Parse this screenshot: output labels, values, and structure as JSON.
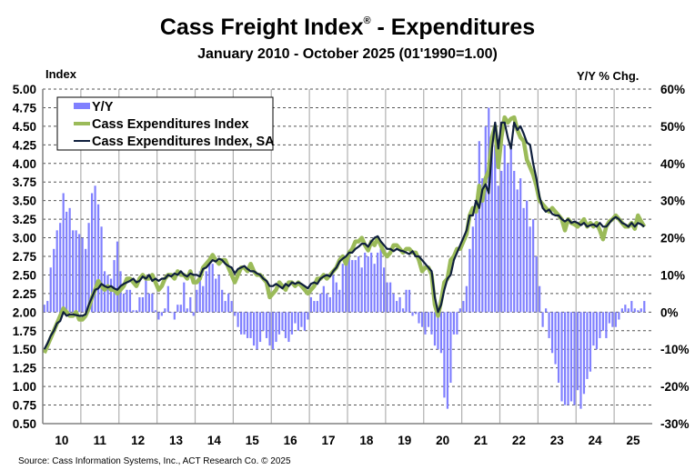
{
  "chart_data": {
    "type": "bar+line",
    "title": "Cass Freight Index",
    "title_mark": "®",
    "title_suffix": " - Expenditures",
    "subtitle": "January 2010 - October 2025 (01'1990=1.00)",
    "ylabel": "Index",
    "y2label": "Y/Y % Chg.",
    "ylim": [
      0.5,
      5.0
    ],
    "y2lim": [
      -30,
      60
    ],
    "yticks": [
      "5.00",
      "4.75",
      "4.50",
      "4.25",
      "4.00",
      "3.75",
      "3.50",
      "3.25",
      "3.00",
      "2.75",
      "2.50",
      "2.25",
      "2.00",
      "1.75",
      "1.50",
      "1.25",
      "1.00",
      "0.75",
      "0.50"
    ],
    "y2ticks": [
      "60%",
      "50%",
      "40%",
      "30%",
      "20%",
      "10%",
      "0%",
      "-10%",
      "-20%",
      "-30%"
    ],
    "xticks": [
      "10",
      "11",
      "12",
      "13",
      "14",
      "15",
      "16",
      "17",
      "18",
      "19",
      "20",
      "21",
      "22",
      "23",
      "24",
      "25"
    ],
    "x_start": "2010-01",
    "x_end": "2025-10",
    "grid": true,
    "legend_placement": "top-left",
    "colors": {
      "yy": "#8080ff",
      "index": "#9bbb59",
      "index_sa": "#0f1f3d",
      "grid": "#808080"
    },
    "series": [
      {
        "name": "Y/Y",
        "kind": "bar",
        "axis": "right",
        "unit": "%",
        "values": [
          2,
          3,
          12,
          17,
          22,
          24,
          32,
          27,
          28,
          22,
          22,
          21,
          20,
          17,
          24,
          32,
          34,
          29,
          23,
          11,
          10,
          9,
          14,
          19,
          11,
          5,
          6,
          6,
          0.5,
          0.5,
          4,
          4,
          9,
          5,
          5,
          0.5,
          -2,
          -1,
          1,
          7,
          0,
          -2,
          2,
          2,
          8,
          1,
          4,
          -1,
          6,
          11,
          7,
          11,
          13,
          13,
          9,
          10,
          6,
          3,
          5,
          3,
          -1,
          -4,
          -6,
          -6,
          -7,
          -7,
          -9,
          -10,
          -8,
          -5,
          -7,
          -9,
          -10,
          -8,
          -6,
          -5,
          -7,
          -8,
          -6,
          -3,
          -5,
          -4,
          -5,
          -2,
          4,
          3,
          3,
          5,
          7,
          5,
          4,
          10,
          8,
          6,
          13,
          15,
          16,
          14,
          14,
          15,
          12,
          16,
          15,
          16,
          13,
          16,
          17,
          12,
          8,
          8,
          5,
          3,
          4,
          1,
          6,
          6,
          -1,
          -0.5,
          -3,
          -4,
          -6,
          -4,
          -6,
          -9,
          -10,
          -11,
          -23,
          -26,
          -19,
          -6,
          -6,
          1,
          3,
          7,
          17,
          23,
          30,
          46,
          36,
          50,
          55,
          44,
          45,
          34,
          38,
          45,
          40,
          45,
          38,
          33,
          36,
          28,
          30,
          23,
          25,
          15,
          7,
          -4,
          1,
          -7,
          -11,
          -14,
          -19,
          -24,
          -25,
          -25,
          -24,
          -25,
          -21,
          -26,
          -22,
          -18,
          -16,
          -9,
          -10,
          -7,
          -5,
          -7,
          -3,
          -4,
          -4,
          -2,
          1,
          2,
          1,
          3,
          1,
          0.5,
          1,
          3
        ]
      },
      {
        "name": "Cass Expenditures Index",
        "kind": "line",
        "axis": "left",
        "values": [
          1.45,
          1.55,
          1.65,
          1.75,
          1.85,
          1.95,
          2.05,
          2.0,
          1.95,
          1.95,
          2.0,
          1.9,
          1.9,
          1.95,
          2.05,
          2.2,
          2.3,
          2.42,
          2.35,
          2.3,
          2.35,
          2.3,
          2.3,
          2.25,
          2.3,
          2.35,
          2.45,
          2.45,
          2.4,
          2.35,
          2.45,
          2.5,
          2.45,
          2.45,
          2.5,
          2.4,
          2.3,
          2.35,
          2.45,
          2.5,
          2.5,
          2.45,
          2.55,
          2.5,
          2.5,
          2.45,
          2.55,
          2.4,
          2.4,
          2.45,
          2.6,
          2.65,
          2.7,
          2.77,
          2.7,
          2.65,
          2.7,
          2.7,
          2.6,
          2.5,
          2.4,
          2.5,
          2.6,
          2.6,
          2.55,
          2.65,
          2.55,
          2.5,
          2.5,
          2.45,
          2.4,
          2.2,
          2.25,
          2.3,
          2.4,
          2.35,
          2.3,
          2.4,
          2.4,
          2.35,
          2.4,
          2.35,
          2.3,
          2.25,
          2.3,
          2.35,
          2.45,
          2.45,
          2.5,
          2.45,
          2.5,
          2.55,
          2.6,
          2.7,
          2.75,
          2.65,
          2.8,
          2.85,
          2.95,
          2.95,
          3.0,
          2.9,
          2.83,
          2.95,
          2.9,
          3.0,
          2.9,
          2.8,
          2.75,
          2.8,
          2.9,
          2.9,
          2.85,
          2.8,
          2.85,
          2.85,
          2.8,
          2.8,
          2.7,
          2.55,
          2.6,
          2.6,
          2.5,
          2.1,
          1.95,
          2.15,
          2.4,
          2.45,
          2.7,
          2.75,
          2.85,
          2.85,
          2.95,
          3.05,
          3.3,
          3.4,
          3.35,
          3.7,
          3.5,
          3.8,
          3.9,
          4.35,
          4.5,
          3.95,
          4.35,
          4.62,
          4.55,
          4.6,
          4.62,
          4.45,
          4.35,
          4.3,
          4.05,
          3.95,
          3.85,
          3.7,
          3.5,
          3.45,
          3.4,
          3.35,
          3.4,
          3.35,
          3.3,
          3.25,
          3.1,
          3.25,
          3.2,
          3.18,
          3.15,
          3.2,
          3.25,
          3.15,
          3.2,
          3.15,
          3.2,
          3.1,
          2.98,
          3.15,
          3.22,
          3.25,
          3.3,
          3.25,
          3.2,
          3.15,
          3.15,
          3.2,
          3.12,
          3.3,
          3.22,
          3.15
        ]
      },
      {
        "name": "Cass Expenditures Index, SA",
        "kind": "line",
        "axis": "left",
        "values": [
          1.5,
          1.58,
          1.68,
          1.75,
          1.85,
          1.88,
          2.0,
          1.95,
          1.97,
          1.97,
          1.96,
          1.95,
          1.95,
          1.97,
          2.1,
          2.2,
          2.3,
          2.32,
          2.38,
          2.35,
          2.33,
          2.35,
          2.32,
          2.3,
          2.35,
          2.38,
          2.4,
          2.42,
          2.45,
          2.4,
          2.42,
          2.48,
          2.45,
          2.5,
          2.42,
          2.45,
          2.42,
          2.45,
          2.45,
          2.5,
          2.48,
          2.52,
          2.5,
          2.55,
          2.5,
          2.48,
          2.52,
          2.5,
          2.5,
          2.48,
          2.58,
          2.6,
          2.65,
          2.7,
          2.68,
          2.72,
          2.7,
          2.65,
          2.62,
          2.6,
          2.52,
          2.58,
          2.6,
          2.62,
          2.58,
          2.55,
          2.55,
          2.52,
          2.5,
          2.45,
          2.42,
          2.35,
          2.35,
          2.38,
          2.35,
          2.32,
          2.38,
          2.35,
          2.4,
          2.38,
          2.4,
          2.38,
          2.35,
          2.32,
          2.38,
          2.4,
          2.38,
          2.45,
          2.48,
          2.5,
          2.48,
          2.55,
          2.6,
          2.68,
          2.72,
          2.75,
          2.8,
          2.8,
          2.85,
          2.88,
          2.92,
          2.92,
          2.88,
          2.95,
          3.0,
          3.02,
          2.95,
          2.9,
          2.85,
          2.85,
          2.82,
          2.85,
          2.83,
          2.82,
          2.8,
          2.78,
          2.82,
          2.75,
          2.75,
          2.7,
          2.65,
          2.6,
          2.55,
          2.2,
          2.0,
          2.1,
          2.3,
          2.45,
          2.5,
          2.7,
          2.8,
          2.9,
          3.0,
          3.1,
          3.3,
          3.3,
          3.5,
          3.4,
          3.65,
          3.72,
          3.6,
          4.2,
          4.55,
          4.2,
          4.55,
          4.55,
          4.35,
          4.2,
          4.55,
          4.45,
          4.5,
          4.4,
          4.28,
          4.25,
          4.0,
          3.8,
          3.55,
          3.4,
          3.35,
          3.38,
          3.32,
          3.3,
          3.3,
          3.25,
          3.22,
          3.25,
          3.2,
          3.22,
          3.2,
          3.17,
          3.2,
          3.15,
          3.17,
          3.18,
          3.15,
          3.2,
          3.15,
          3.15,
          3.2,
          3.25,
          3.28,
          3.25,
          3.2,
          3.18,
          3.15,
          3.2,
          3.15,
          3.2,
          3.18,
          3.15
        ]
      }
    ]
  },
  "source": "Source: Cass Information Systems, Inc., ACT Research Co. © 2025"
}
